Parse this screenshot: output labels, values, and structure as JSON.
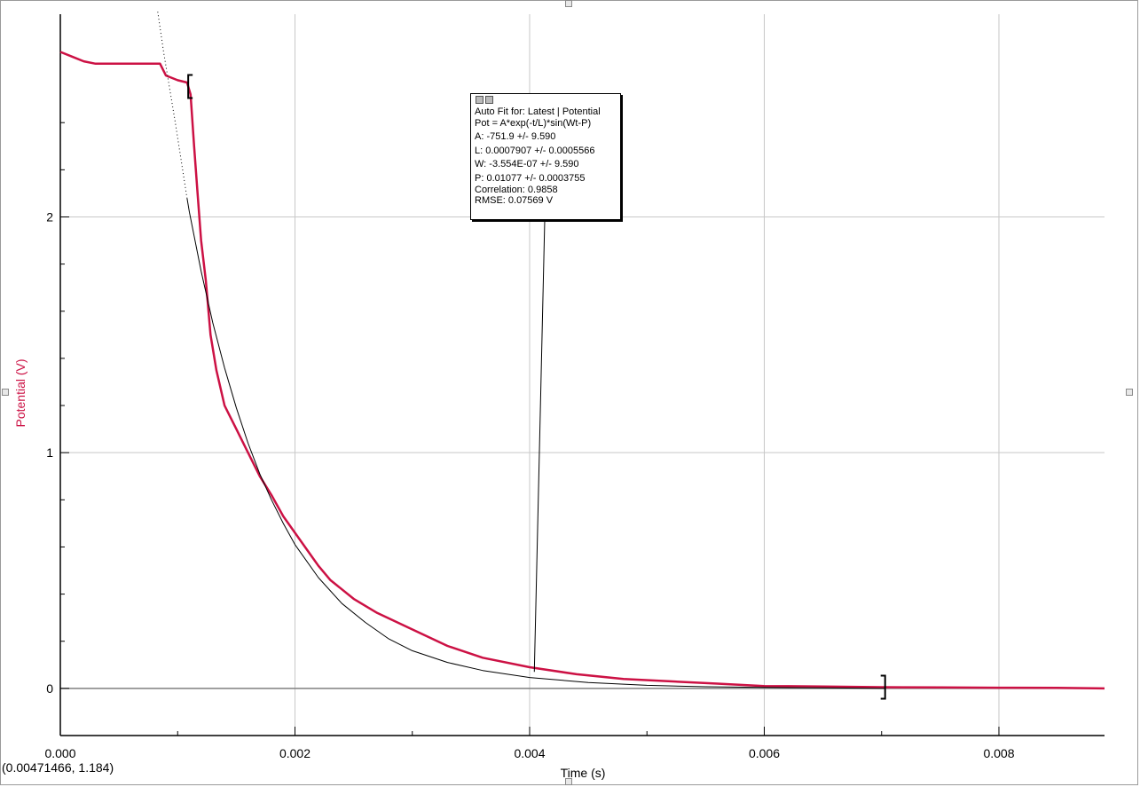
{
  "chart_data": {
    "type": "line",
    "xlabel": "Time (s)",
    "ylabel": "Potential (V)",
    "xlim": [
      0.0,
      0.0089
    ],
    "ylim": [
      -0.2,
      2.86
    ],
    "x_ticks": [
      0.0,
      0.002,
      0.004,
      0.006,
      0.008
    ],
    "x_tick_labels": [
      "0.000",
      "0.002",
      "0.004",
      "0.006",
      "0.008"
    ],
    "x_minor_ticks": [
      0.001,
      0.003,
      0.005,
      0.007
    ],
    "y_ticks": [
      0,
      1,
      2
    ],
    "y_tick_labels": [
      "0",
      "1",
      "2"
    ],
    "y_minor_ticks": [
      0.2,
      0.4,
      0.6,
      0.8,
      1.2,
      1.4,
      1.6,
      1.8,
      2.2,
      2.4
    ],
    "grid": true,
    "series": [
      {
        "name": "Potential",
        "color": "#cc1144",
        "x": [
          0.0,
          0.0001,
          0.0002,
          0.0003,
          0.0004,
          0.0005,
          0.0006,
          0.0007,
          0.0008,
          0.00085,
          0.0009,
          0.001,
          0.00108,
          0.00111,
          0.00114,
          0.00117,
          0.0012,
          0.00124,
          0.00128,
          0.00133,
          0.0014,
          0.0015,
          0.0016,
          0.0017,
          0.0018,
          0.0019,
          0.002,
          0.0021,
          0.0022,
          0.0023,
          0.0025,
          0.0027,
          0.003,
          0.0033,
          0.0036,
          0.004,
          0.0044,
          0.0048,
          0.0052,
          0.0056,
          0.006,
          0.0065,
          0.007,
          0.0075,
          0.008,
          0.0085,
          0.0089
        ],
        "y": [
          2.7,
          2.68,
          2.66,
          2.65,
          2.65,
          2.65,
          2.65,
          2.65,
          2.65,
          2.65,
          2.6,
          2.58,
          2.57,
          2.52,
          2.3,
          2.1,
          1.9,
          1.73,
          1.5,
          1.35,
          1.2,
          1.1,
          1.0,
          0.9,
          0.82,
          0.73,
          0.66,
          0.59,
          0.52,
          0.46,
          0.38,
          0.32,
          0.25,
          0.18,
          0.13,
          0.09,
          0.06,
          0.04,
          0.03,
          0.02,
          0.01,
          0.008,
          0.005,
          0.004,
          0.003,
          0.002,
          0.0
        ]
      },
      {
        "color": "#000000",
        "style": "solid",
        "x": [
          0.00108,
          0.0011,
          0.0012,
          0.0013,
          0.0014,
          0.0015,
          0.0016,
          0.0017,
          0.0018,
          0.0019,
          0.002,
          0.0022,
          0.0024,
          0.0026,
          0.0028,
          0.003,
          0.0033,
          0.0036,
          0.004,
          0.0045,
          0.005,
          0.0055,
          0.006,
          0.0065,
          0.00703
        ],
        "y": [
          2.08,
          2.02,
          1.77,
          1.55,
          1.36,
          1.19,
          1.04,
          0.91,
          0.8,
          0.7,
          0.61,
          0.47,
          0.36,
          0.28,
          0.21,
          0.16,
          0.11,
          0.076,
          0.046,
          0.025,
          0.013,
          0.007,
          0.004,
          0.002,
          0.0
        ]
      },
      {
        "color": "#000000",
        "style": "dotted",
        "x": [
          0.00083,
          0.00088,
          0.00093,
          0.00098,
          0.00103,
          0.00108
        ],
        "y": [
          2.87,
          2.7,
          2.55,
          2.4,
          2.24,
          2.08
        ]
      }
    ],
    "fit_range": [
      0.00109,
      0.00703
    ],
    "annotation": {
      "lines": [
        "Auto Fit for: Latest | Potential",
        "Pot = A*exp(-t/L)*sin(Wt-P)",
        "A: -751.9 +/- 9.590",
        "L: 0.0007907 +/- 0.0005566",
        "W: -3.554E-07 +/- 9.590",
        "P: 0.01077 +/- 0.0003755",
        "Correlation: 0.9858",
        "RMSE: 0.07569 V"
      ],
      "leader_x": 0.00404,
      "leader_y": 0.07
    },
    "cursor_readout": "(0.00471466, 1.184)"
  }
}
